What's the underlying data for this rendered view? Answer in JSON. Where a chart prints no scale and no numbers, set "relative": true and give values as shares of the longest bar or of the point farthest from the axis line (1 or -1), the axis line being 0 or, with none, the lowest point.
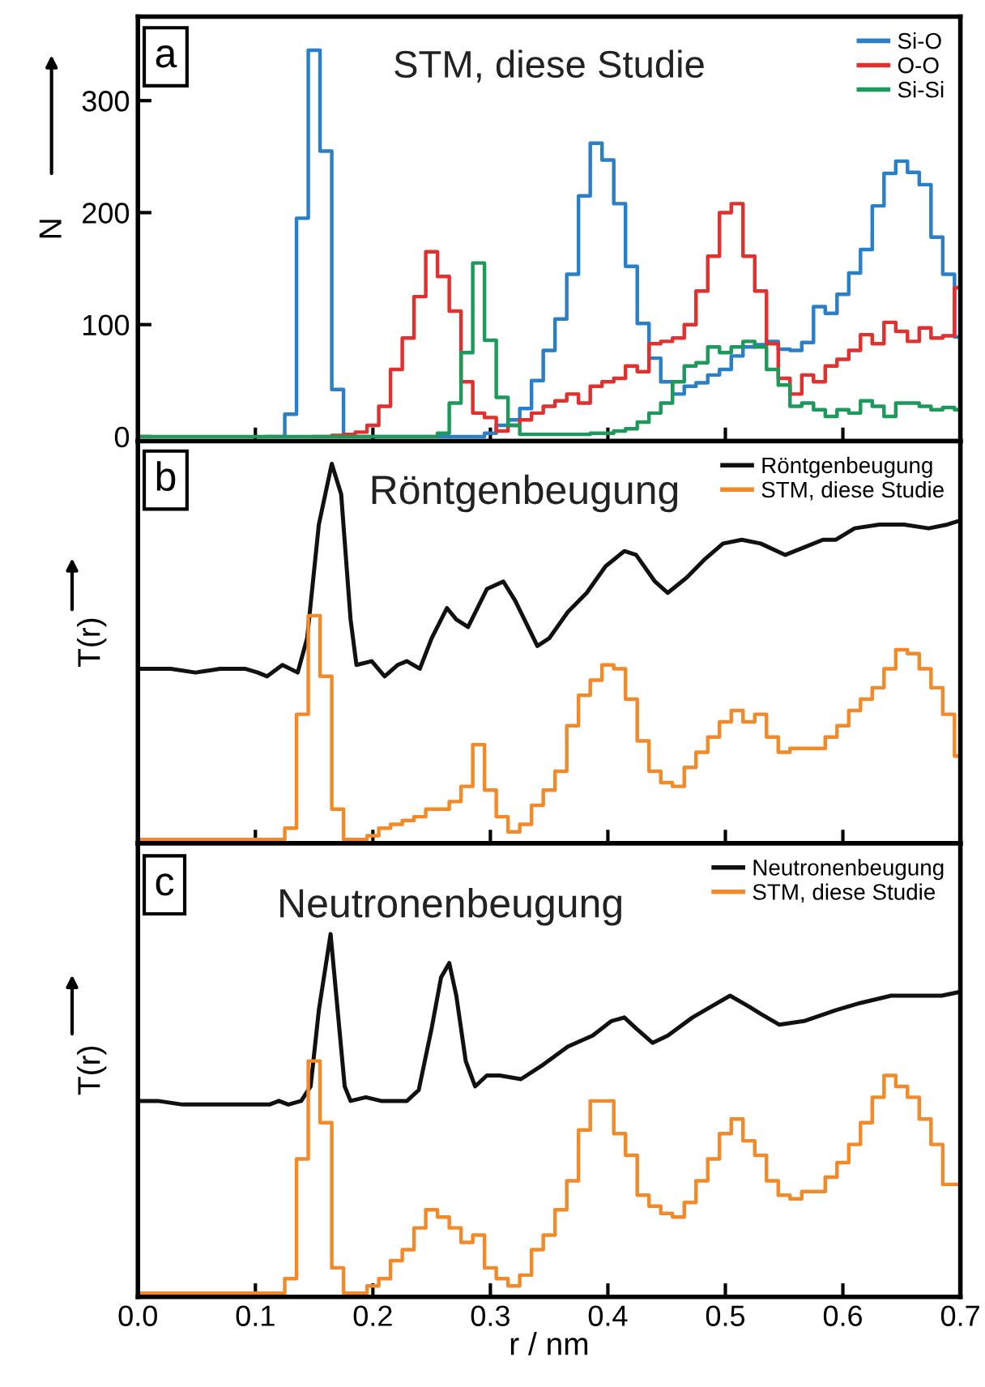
{
  "chart_data": [
    {
      "type": "step",
      "title": "STM, diese Studie",
      "ylabel": "N",
      "annotations": [
        "a"
      ],
      "legend": "top right",
      "tick_labels": "y",
      "xlim": [
        0,
        0.7
      ],
      "xticks": [
        0.1,
        0.2,
        0.3,
        0.4,
        0.5,
        0.6
      ],
      "ylim": [
        -4,
        375
      ],
      "yticks": [
        0,
        100,
        200,
        300
      ],
      "x": [
        0.0,
        0.01,
        0.02,
        0.03,
        0.04,
        0.05,
        0.06,
        0.07,
        0.08,
        0.09,
        0.1,
        0.11,
        0.12,
        0.13,
        0.14,
        0.15,
        0.16,
        0.17,
        0.18,
        0.19,
        0.2,
        0.21,
        0.22,
        0.23,
        0.24,
        0.25,
        0.26,
        0.27,
        0.28,
        0.29,
        0.3,
        0.31,
        0.32,
        0.33,
        0.34,
        0.35,
        0.36,
        0.37,
        0.38,
        0.39,
        0.4,
        0.41,
        0.42,
        0.43,
        0.44,
        0.45,
        0.46,
        0.47,
        0.48,
        0.49,
        0.5,
        0.51,
        0.52,
        0.53,
        0.54,
        0.55,
        0.56,
        0.57,
        0.58,
        0.59,
        0.6,
        0.61,
        0.62,
        0.63,
        0.64,
        0.65,
        0.66,
        0.67,
        0.68,
        0.69,
        0.7
      ],
      "series": [
        {
          "name": "Si-O",
          "color": "#2a7fc9",
          "values": [
            null,
            null,
            null,
            null,
            null,
            null,
            null,
            null,
            null,
            null,
            null,
            0,
            0,
            20,
            195,
            345,
            255,
            42,
            0,
            0,
            0,
            0,
            0,
            0,
            0,
            0,
            0,
            0,
            0,
            0,
            3,
            10,
            15,
            25,
            50,
            77,
            105,
            145,
            215,
            262,
            247,
            208,
            152,
            101,
            70,
            49,
            38,
            45,
            48,
            55,
            60,
            72,
            80,
            82,
            85,
            78,
            77,
            84,
            116,
            110,
            127,
            146,
            167,
            206,
            235,
            246,
            236,
            225,
            178,
            145,
            89
          ]
        },
        {
          "name": "O-O",
          "color": "#e0312f",
          "values": [
            null,
            null,
            null,
            null,
            null,
            null,
            null,
            null,
            null,
            null,
            null,
            null,
            null,
            null,
            null,
            0,
            0,
            1,
            2,
            4,
            10,
            27,
            60,
            88,
            125,
            165,
            143,
            112,
            49,
            21,
            17,
            5,
            10,
            15,
            21,
            27,
            32,
            38,
            30,
            45,
            49,
            52,
            63,
            58,
            83,
            85,
            88,
            100,
            130,
            161,
            200,
            208,
            161,
            130,
            83,
            52,
            38,
            55,
            49,
            63,
            69,
            77,
            91,
            83,
            102,
            94,
            85,
            97,
            88,
            90,
            133
          ]
        },
        {
          "name": "Si-Si",
          "color": "#1d9a5b",
          "values": [
            0,
            0,
            0,
            0,
            0,
            0,
            0,
            0,
            0,
            0,
            0,
            0,
            0,
            0,
            0,
            0,
            0,
            0,
            0,
            0,
            0,
            0,
            0,
            0,
            0,
            0,
            3,
            30,
            75,
            155,
            86,
            35,
            10,
            2,
            2,
            2,
            2,
            2,
            2,
            3,
            3,
            5,
            7,
            13,
            21,
            30,
            49,
            63,
            66,
            80,
            75,
            80,
            85,
            80,
            60,
            46,
            27,
            30,
            24,
            18,
            24,
            21,
            32,
            27,
            18,
            30,
            30,
            27,
            24,
            26,
            24
          ]
        }
      ]
    },
    {
      "type": "line",
      "title": "Röntgenbeugung",
      "ylabel": "T(r)",
      "annotations": [
        "b"
      ],
      "legend": "top right",
      "tick_labels": false,
      "relative": true,
      "xlim": [
        0,
        0.7
      ],
      "xticks": [
        0.1,
        0.2,
        0.3,
        0.4,
        0.5,
        0.6
      ],
      "series": [
        {
          "name": "Röntgenbeugung",
          "color": "#111111",
          "x": [
            0.0,
            0.028,
            0.049,
            0.07,
            0.091,
            0.102,
            0.11,
            0.123,
            0.136,
            0.144,
            0.154,
            0.165,
            0.173,
            0.181,
            0.186,
            0.199,
            0.21,
            0.221,
            0.229,
            0.24,
            0.25,
            0.263,
            0.271,
            0.281,
            0.297,
            0.311,
            0.321,
            0.34,
            0.35,
            0.366,
            0.382,
            0.398,
            0.414,
            0.424,
            0.44,
            0.451,
            0.467,
            0.483,
            0.498,
            0.514,
            0.53,
            0.551,
            0.567,
            0.583,
            0.594,
            0.61,
            0.631,
            0.652,
            0.673,
            0.689,
            0.699
          ],
          "values": [
            0.46,
            0.46,
            0.45,
            0.46,
            0.46,
            0.45,
            0.44,
            0.47,
            0.45,
            0.54,
            0.84,
            1.0,
            0.92,
            0.59,
            0.47,
            0.48,
            0.44,
            0.47,
            0.48,
            0.46,
            0.54,
            0.62,
            0.59,
            0.57,
            0.67,
            0.69,
            0.64,
            0.52,
            0.54,
            0.61,
            0.66,
            0.73,
            0.77,
            0.76,
            0.69,
            0.66,
            0.7,
            0.75,
            0.79,
            0.8,
            0.79,
            0.76,
            0.78,
            0.8,
            0.8,
            0.83,
            0.84,
            0.84,
            0.83,
            0.84,
            0.85
          ]
        },
        {
          "name": "STM, diese Studie",
          "color": "#f28a2a",
          "type": "step",
          "x": [
            0.0,
            0.01,
            0.02,
            0.03,
            0.04,
            0.05,
            0.06,
            0.07,
            0.08,
            0.09,
            0.1,
            0.11,
            0.12,
            0.13,
            0.14,
            0.15,
            0.16,
            0.17,
            0.18,
            0.19,
            0.2,
            0.21,
            0.22,
            0.23,
            0.24,
            0.25,
            0.26,
            0.27,
            0.28,
            0.29,
            0.3,
            0.31,
            0.32,
            0.33,
            0.34,
            0.35,
            0.36,
            0.37,
            0.38,
            0.39,
            0.4,
            0.41,
            0.42,
            0.43,
            0.44,
            0.45,
            0.46,
            0.47,
            0.48,
            0.49,
            0.5,
            0.51,
            0.52,
            0.53,
            0.54,
            0.55,
            0.56,
            0.57,
            0.58,
            0.59,
            0.6,
            0.61,
            0.62,
            0.63,
            0.64,
            0.65,
            0.66,
            0.67,
            0.68,
            0.69,
            0.7
          ],
          "values": [
            0.01,
            0.01,
            0.01,
            0.01,
            0.01,
            0.01,
            0.01,
            0.01,
            0.01,
            0.01,
            0.01,
            0.01,
            0.01,
            0.04,
            0.34,
            0.6,
            0.44,
            0.09,
            0.01,
            0.01,
            0.02,
            0.04,
            0.05,
            0.06,
            0.07,
            0.09,
            0.09,
            0.11,
            0.15,
            0.26,
            0.14,
            0.07,
            0.03,
            0.05,
            0.1,
            0.14,
            0.19,
            0.31,
            0.39,
            0.43,
            0.47,
            0.46,
            0.38,
            0.27,
            0.19,
            0.16,
            0.15,
            0.2,
            0.24,
            0.28,
            0.32,
            0.35,
            0.32,
            0.34,
            0.28,
            0.24,
            0.25,
            0.25,
            0.25,
            0.28,
            0.31,
            0.35,
            0.38,
            0.41,
            0.46,
            0.51,
            0.5,
            0.46,
            0.41,
            0.34,
            0.23
          ]
        }
      ]
    },
    {
      "type": "line",
      "title": "Neutronenbeugung",
      "ylabel": "T(r)",
      "xlabel": "r / nm",
      "annotations": [
        "c"
      ],
      "legend": "top right",
      "tick_labels": "x",
      "relative": true,
      "xlim": [
        0,
        0.7
      ],
      "xticks": [
        {
          "value": 0,
          "label": "0.0"
        },
        0.1,
        0.2,
        0.3,
        0.4,
        0.5,
        0.6,
        0.7
      ],
      "series": [
        {
          "name": "Neutronenbeugung",
          "color": "#111111",
          "x": [
            0.0,
            0.017,
            0.038,
            0.065,
            0.091,
            0.112,
            0.12,
            0.128,
            0.139,
            0.147,
            0.154,
            0.164,
            0.17,
            0.176,
            0.181,
            0.194,
            0.207,
            0.229,
            0.239,
            0.25,
            0.258,
            0.265,
            0.271,
            0.279,
            0.287,
            0.297,
            0.308,
            0.326,
            0.345,
            0.366,
            0.387,
            0.403,
            0.414,
            0.424,
            0.438,
            0.451,
            0.472,
            0.488,
            0.504,
            0.52,
            0.53,
            0.546,
            0.567,
            0.594,
            0.615,
            0.641,
            0.662,
            0.684,
            0.699
          ],
          "values": [
            0.54,
            0.54,
            0.53,
            0.53,
            0.53,
            0.53,
            0.54,
            0.53,
            0.54,
            0.58,
            0.79,
            1.0,
            0.79,
            0.58,
            0.54,
            0.55,
            0.54,
            0.54,
            0.57,
            0.74,
            0.88,
            0.92,
            0.83,
            0.65,
            0.58,
            0.61,
            0.61,
            0.6,
            0.64,
            0.69,
            0.72,
            0.76,
            0.77,
            0.74,
            0.7,
            0.72,
            0.77,
            0.8,
            0.83,
            0.8,
            0.78,
            0.75,
            0.76,
            0.79,
            0.81,
            0.83,
            0.83,
            0.83,
            0.84
          ]
        },
        {
          "name": "STM, diese Studie",
          "color": "#f28a2a",
          "type": "step",
          "x": [
            0.0,
            0.01,
            0.02,
            0.03,
            0.04,
            0.05,
            0.06,
            0.07,
            0.08,
            0.09,
            0.1,
            0.11,
            0.12,
            0.13,
            0.14,
            0.15,
            0.16,
            0.17,
            0.18,
            0.19,
            0.2,
            0.21,
            0.22,
            0.23,
            0.24,
            0.25,
            0.26,
            0.27,
            0.28,
            0.29,
            0.3,
            0.31,
            0.32,
            0.33,
            0.34,
            0.35,
            0.36,
            0.37,
            0.38,
            0.39,
            0.4,
            0.41,
            0.42,
            0.43,
            0.44,
            0.45,
            0.46,
            0.47,
            0.48,
            0.49,
            0.5,
            0.51,
            0.52,
            0.53,
            0.54,
            0.55,
            0.56,
            0.57,
            0.58,
            0.59,
            0.6,
            0.61,
            0.62,
            0.63,
            0.64,
            0.65,
            0.66,
            0.67,
            0.68,
            0.69,
            0.7
          ],
          "values": [
            0.01,
            0.01,
            0.01,
            0.01,
            0.01,
            0.01,
            0.01,
            0.01,
            0.01,
            0.01,
            0.01,
            0.01,
            0.01,
            0.05,
            0.38,
            0.65,
            0.48,
            0.08,
            0.01,
            0.01,
            0.03,
            0.05,
            0.1,
            0.13,
            0.19,
            0.24,
            0.22,
            0.19,
            0.15,
            0.17,
            0.08,
            0.05,
            0.03,
            0.06,
            0.13,
            0.17,
            0.24,
            0.32,
            0.46,
            0.54,
            0.54,
            0.45,
            0.39,
            0.28,
            0.25,
            0.23,
            0.22,
            0.26,
            0.32,
            0.38,
            0.45,
            0.49,
            0.43,
            0.39,
            0.32,
            0.28,
            0.27,
            0.29,
            0.29,
            0.33,
            0.37,
            0.42,
            0.48,
            0.55,
            0.61,
            0.58,
            0.55,
            0.49,
            0.42,
            0.31,
            0.31
          ]
        }
      ]
    }
  ]
}
